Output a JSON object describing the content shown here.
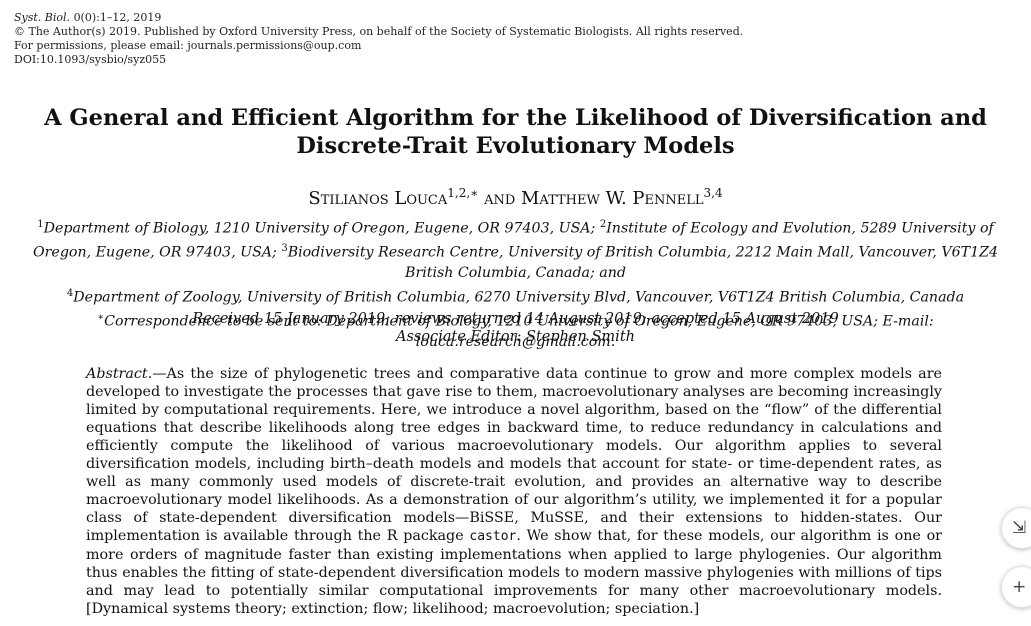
{
  "header": {
    "journal": "Syst. Biol.",
    "issue": "0(0):1–12, 2019",
    "copyright": "© The Author(s) 2019. Published by Oxford University Press, on behalf of the Society of Systematic Biologists. All rights reserved.",
    "permissions": "For permissions, please email: journals.permissions@oup.com",
    "doi": "DOI:10.1093/sysbio/syz055"
  },
  "title": "A General and Efficient Algorithm for the Likelihood of Diversification and Discrete-Trait Evolutionary Models",
  "authors": {
    "author1": "Stilianos Louca",
    "author1_sup": "1,2,∗",
    "and": "and",
    "author2": "Matthew W. Pennell",
    "author2_sup": "3,4"
  },
  "affiliations": {
    "a1_sup": "1",
    "a1": "Department of Biology, 1210 University of Oregon, Eugene, OR 97403, USA; ",
    "a2_sup": "2",
    "a2": "Institute of Ecology and Evolution, 5289 University of Oregon, Eugene, OR 97403, USA; ",
    "a3_sup": "3",
    "a3": "Biodiversity Research Centre, University of British Columbia, 2212 Main Mall, Vancouver, V6T1Z4 British Columbia, Canada; and",
    "a4_sup": "4",
    "a4": "Department of Zoology, University of British Columbia, 6270 University Blvd, Vancouver, V6T1Z4 British Columbia, Canada",
    "corr_sup": "∗",
    "corr": "Correspondence to be sent to: Department of Biology, 1210 University of Oregon, Eugene, OR 97403, USA; E-mail: louca.research@gmail.com."
  },
  "dates": {
    "received": "Received 15 January 2019; reviews returned 14 August 2019; accepted 15 August 2019",
    "editor": "Associate Editor: Stephen Smith"
  },
  "abstract": {
    "lead": "Abstract.",
    "text1": "—As the size of phylogenetic trees and comparative data continue to grow and more complex models are developed to investigate the processes that gave rise to them, macroevolutionary analyses are becoming increasingly limited by computational requirements. Here, we introduce a novel algorithm, based on the “flow” of the differential equations that describe likelihoods along tree edges in backward time, to reduce redundancy in calculations and efficiently compute the likelihood of various macroevolutionary models. Our algorithm applies to several diversification models, including birth–death models and models that account for state- or time-dependent rates, as well as many commonly used models of discrete-trait evolution, and provides an alternative way to describe macroevolutionary model likelihoods. As a demonstration of our algorithm’s utility, we implemented it for a popular class of state-dependent diversification models—BiSSE, MuSSE, and their extensions to hidden-states. Our implementation is available through the R package ",
    "code": "castor",
    "text2": ". We show that, for these models, our algorithm is one or more orders of magnitude faster than existing implementations when applied to large phylogenies. Our algorithm thus enables the fitting of state-dependent diversification models to modern massive phylogenies with millions of tips and may lead to potentially similar computational improvements for many other macroevolutionary models. [Dynamical systems theory; extinction; flow; likelihood; macroevolution; speciation.]"
  },
  "controls": {
    "collapse_glyph": "⇲",
    "plus_glyph": "+"
  }
}
